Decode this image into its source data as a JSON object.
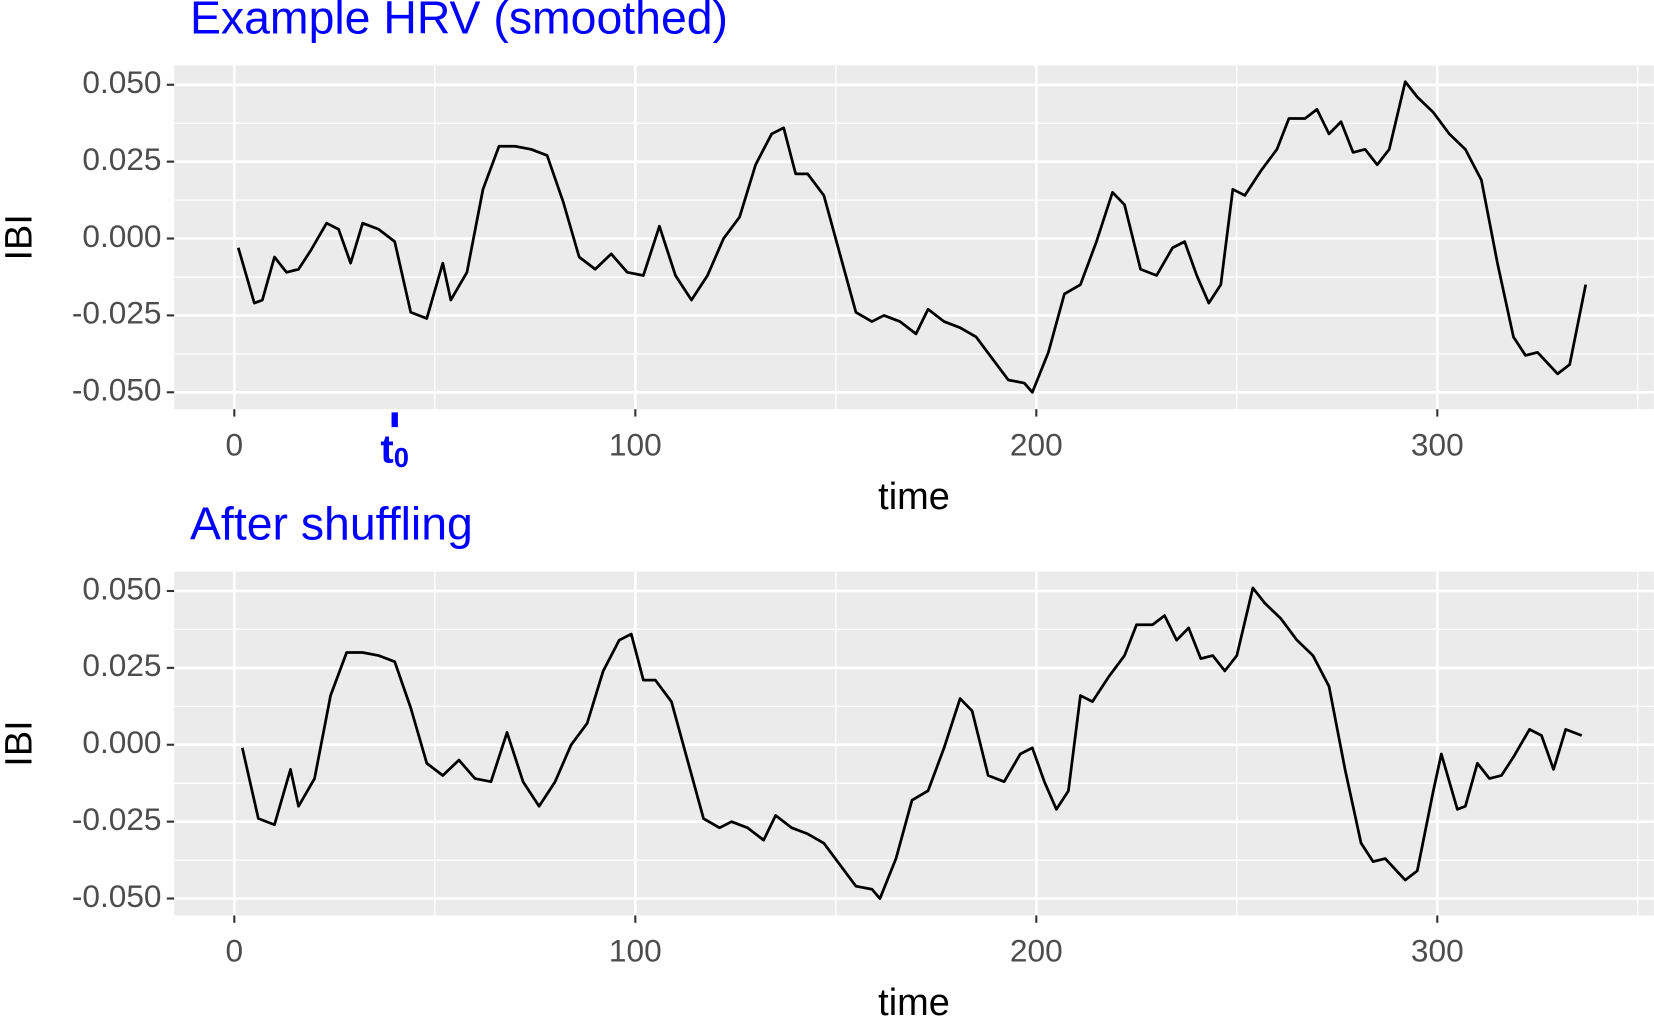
{
  "chart_data": [
    {
      "type": "line",
      "title": "Example HRV (smoothed)",
      "title_color": "#0000ff",
      "x_label": "time",
      "y_label": "IBI",
      "xlim": [
        -15,
        354
      ],
      "ylim": [
        -0.0555,
        0.0563
      ],
      "xticks": [
        0,
        100,
        200,
        300
      ],
      "minor_xticks": [
        50,
        150,
        250,
        350
      ],
      "yticks": [
        {
          "value": -0.05,
          "label": "-0.050"
        },
        {
          "value": -0.025,
          "label": "-0.025"
        },
        {
          "value": 0,
          "label": "0.000"
        },
        {
          "value": 0.025,
          "label": "0.025"
        },
        {
          "value": 0.05,
          "label": "0.050"
        }
      ],
      "minor_yticks": [
        -0.0375,
        -0.0125,
        0.0125,
        0.0375
      ],
      "grid": true,
      "annotation": {
        "text": "t",
        "subscript": "0",
        "x": 40,
        "color": "#0000ff"
      },
      "series": [
        {
          "color": "#000000",
          "x": [
            1,
            5,
            7,
            10,
            13,
            16,
            19,
            23,
            26,
            29,
            32,
            36,
            40,
            44,
            48,
            52,
            54,
            58,
            62,
            66,
            70,
            74,
            78,
            82,
            86,
            90,
            94,
            98,
            102,
            106,
            110,
            114,
            118,
            122,
            126,
            130,
            134,
            137,
            140,
            143,
            147,
            151,
            155,
            159,
            162,
            166,
            170,
            173,
            177,
            181,
            185,
            189,
            193,
            197,
            199,
            203,
            207,
            211,
            215,
            219,
            222,
            226,
            230,
            234,
            237,
            240,
            243,
            246,
            249,
            252,
            256,
            260,
            263,
            267,
            270,
            273,
            276,
            279,
            282,
            285,
            288,
            292,
            295,
            299,
            303,
            307,
            311,
            315,
            319,
            322,
            325,
            330,
            333,
            337
          ],
          "values": [
            -0.003,
            -0.021,
            -0.02,
            -0.006,
            -0.011,
            -0.01,
            -0.004,
            0.005,
            0.003,
            -0.008,
            0.005,
            0.003,
            -0.001,
            -0.024,
            -0.026,
            -0.008,
            -0.02,
            -0.011,
            0.016,
            0.03,
            0.03,
            0.029,
            0.027,
            0.012,
            -0.006,
            -0.01,
            -0.005,
            -0.011,
            -0.012,
            0.004,
            -0.012,
            -0.02,
            -0.012,
            0,
            0.007,
            0.024,
            0.034,
            0.036,
            0.021,
            0.021,
            0.014,
            -0.005,
            -0.024,
            -0.027,
            -0.025,
            -0.027,
            -0.031,
            -0.023,
            -0.027,
            -0.029,
            -0.032,
            -0.039,
            -0.046,
            -0.047,
            -0.05,
            -0.037,
            -0.018,
            -0.015,
            -0.001,
            0.015,
            0.011,
            -0.01,
            -0.012,
            -0.003,
            -0.001,
            -0.012,
            -0.021,
            -0.015,
            0.016,
            0.014,
            0.022,
            0.029,
            0.039,
            0.039,
            0.042,
            0.034,
            0.038,
            0.028,
            0.029,
            0.024,
            0.029,
            0.051,
            0.046,
            0.041,
            0.034,
            0.029,
            0.019,
            -0.008,
            -0.032,
            -0.038,
            -0.037,
            -0.044,
            -0.041,
            -0.015
          ]
        }
      ]
    },
    {
      "type": "line",
      "title": "After shuffling",
      "title_color": "#0000ff",
      "x_label": "time",
      "y_label": "IBI",
      "xlim": [
        -15,
        354
      ],
      "ylim": [
        -0.0555,
        0.0563
      ],
      "xticks": [
        0,
        100,
        200,
        300
      ],
      "minor_xticks": [
        50,
        150,
        250,
        350
      ],
      "yticks": [
        {
          "value": -0.05,
          "label": "-0.050"
        },
        {
          "value": -0.025,
          "label": "-0.025"
        },
        {
          "value": 0,
          "label": "0.000"
        },
        {
          "value": 0.025,
          "label": "0.025"
        },
        {
          "value": 0.05,
          "label": "0.050"
        }
      ],
      "minor_yticks": [
        -0.0375,
        -0.0125,
        0.0125,
        0.0375
      ],
      "grid": true,
      "series": [
        {
          "color": "#000000",
          "x": [
            2,
            6,
            10,
            14,
            16,
            20,
            24,
            28,
            32,
            36,
            40,
            44,
            48,
            52,
            56,
            60,
            64,
            68,
            72,
            76,
            80,
            84,
            88,
            92,
            96,
            99,
            102,
            105,
            109,
            113,
            117,
            121,
            124,
            128,
            132,
            135,
            139,
            143,
            147,
            151,
            155,
            159,
            161,
            165,
            169,
            173,
            177,
            181,
            184,
            188,
            192,
            196,
            199,
            202,
            205,
            208,
            211,
            214,
            218,
            222,
            225,
            229,
            232,
            235,
            238,
            241,
            244,
            247,
            250,
            254,
            257,
            261,
            265,
            269,
            273,
            277,
            281,
            284,
            287,
            292,
            295,
            299,
            301,
            305,
            307,
            310,
            313,
            316,
            319,
            323,
            326,
            329,
            332,
            336
          ],
          "values": [
            -0.001,
            -0.024,
            -0.026,
            -0.008,
            -0.02,
            -0.011,
            0.016,
            0.03,
            0.03,
            0.029,
            0.027,
            0.012,
            -0.006,
            -0.01,
            -0.005,
            -0.011,
            -0.012,
            0.004,
            -0.012,
            -0.02,
            -0.012,
            0,
            0.007,
            0.024,
            0.034,
            0.036,
            0.021,
            0.021,
            0.014,
            -0.005,
            -0.024,
            -0.027,
            -0.025,
            -0.027,
            -0.031,
            -0.023,
            -0.027,
            -0.029,
            -0.032,
            -0.039,
            -0.046,
            -0.047,
            -0.05,
            -0.037,
            -0.018,
            -0.015,
            -0.001,
            0.015,
            0.011,
            -0.01,
            -0.012,
            -0.003,
            -0.001,
            -0.012,
            -0.021,
            -0.015,
            0.016,
            0.014,
            0.022,
            0.029,
            0.039,
            0.039,
            0.042,
            0.034,
            0.038,
            0.028,
            0.029,
            0.024,
            0.029,
            0.051,
            0.046,
            0.041,
            0.034,
            0.029,
            0.019,
            -0.008,
            -0.032,
            -0.038,
            -0.037,
            -0.044,
            -0.041,
            -0.015,
            -0.003,
            -0.021,
            -0.02,
            -0.006,
            -0.011,
            -0.01,
            -0.004,
            0.005,
            0.003,
            -0.008,
            0.005,
            0.003
          ]
        }
      ]
    }
  ]
}
